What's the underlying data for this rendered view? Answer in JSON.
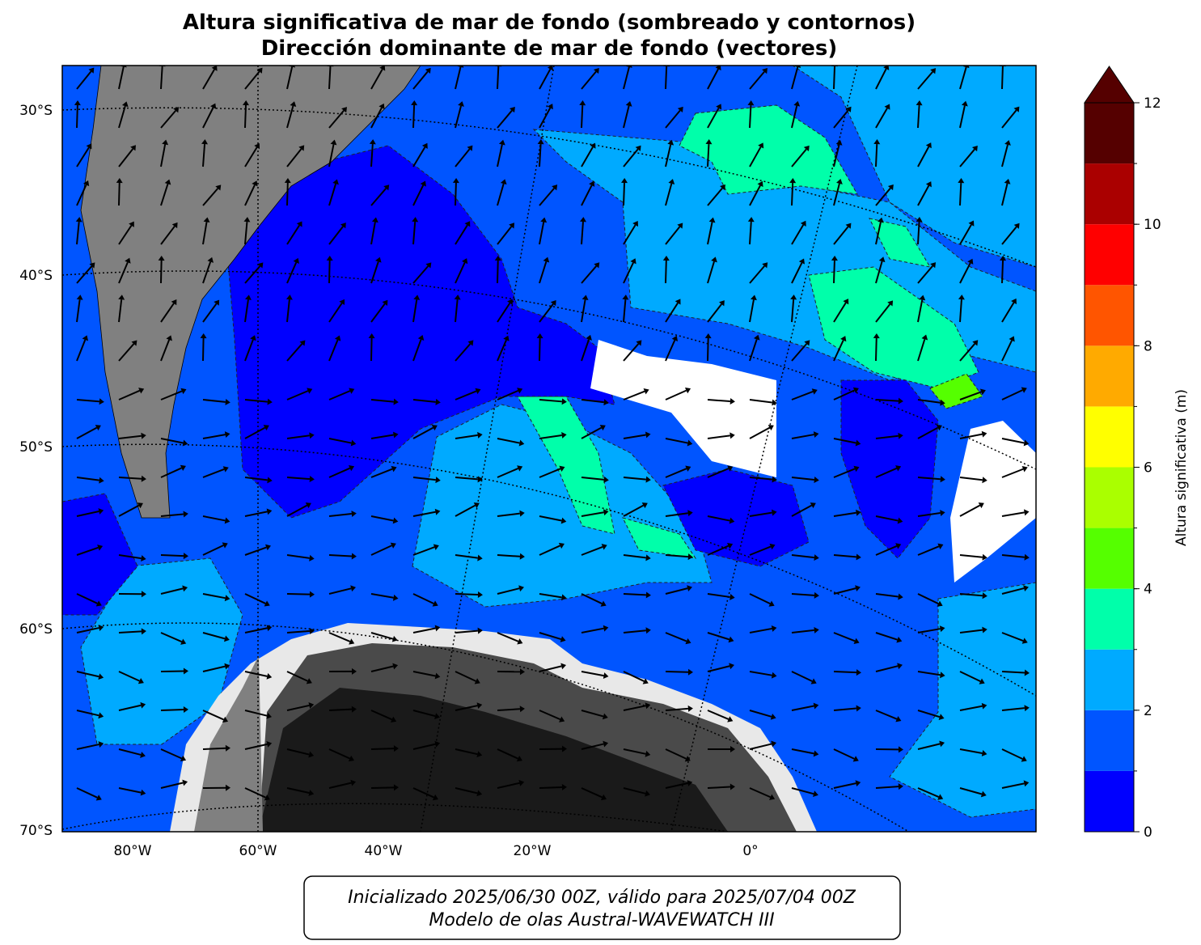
{
  "title": [
    "Altura significativa de mar de fondo (sombreado y contornos)",
    "Dirección dominante de mar de fondo (vectores)"
  ],
  "map": {
    "lat_labels": [
      "30°S",
      "40°S",
      "50°S",
      "60°S",
      "70°S"
    ],
    "lon_labels": [
      "80°W",
      "60°W",
      "40°W",
      "20°W",
      "0°"
    ]
  },
  "colorbar": {
    "label": "Altura significativa (m)",
    "levels": [
      0,
      1,
      2,
      3,
      4,
      5,
      6,
      7,
      8,
      9,
      10,
      11,
      12
    ],
    "colors": [
      "#0000ff",
      "#0055ff",
      "#00aaff",
      "#00ffaa",
      "#55ff00",
      "#aaff00",
      "#ffff00",
      "#ffaa00",
      "#ff5500",
      "#ff0000",
      "#aa0000",
      "#550000"
    ],
    "ticks": [
      0,
      2,
      4,
      6,
      8,
      10,
      12
    ],
    "extend": "max",
    "extend_color": "#550000"
  },
  "footer": [
    "Inicializado 2025/06/30 00Z, válido para 2025/07/04 00Z",
    "Modelo de olas Austral-WAVEWATCH III"
  ]
}
